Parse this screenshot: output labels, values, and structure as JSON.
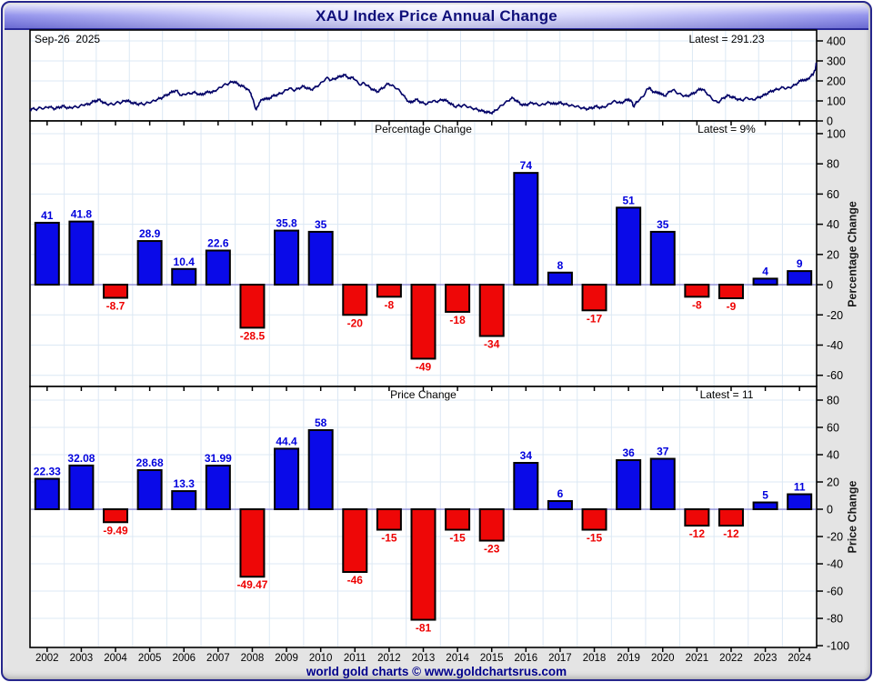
{
  "header": {
    "title": "XAU Index Price Annual Change"
  },
  "footer": {
    "text": "world gold charts © www.goldchartsrus.com"
  },
  "colors": {
    "frame_border": "#26268c",
    "header_text": "#10107a",
    "footer_text": "#00008b",
    "page_bg": "#e4e4e4",
    "panel_bg": "#ffffff",
    "panel_border": "#000000",
    "grid": "#dce8f4",
    "zero_line": "#8a8ad6",
    "line": "#000066",
    "bar_positive": "#0a0ae8",
    "bar_negative": "#ee0707",
    "label_positive": "#0000dd",
    "label_negative": "#ee0000",
    "tick_text": "#000000"
  },
  "chart_data": [
    {
      "type": "line",
      "name": "xau-index-price",
      "date_label": "Sep-26  2025",
      "latest_label": "Latest = 291.23",
      "latest_value": 291.23,
      "ylim": [
        0,
        454.5
      ],
      "yticks": [
        0,
        100,
        200,
        300,
        400
      ],
      "x_range": [
        2002.0,
        2025.75
      ],
      "grid": true,
      "points": [
        [
          2002.0,
          58
        ],
        [
          2002.08,
          61
        ],
        [
          2002.17,
          57
        ],
        [
          2002.25,
          63
        ],
        [
          2002.33,
          66
        ],
        [
          2002.42,
          62
        ],
        [
          2002.5,
          68
        ],
        [
          2002.58,
          71
        ],
        [
          2002.67,
          65
        ],
        [
          2002.75,
          61
        ],
        [
          2002.83,
          66
        ],
        [
          2002.92,
          70
        ],
        [
          2003.0,
          74
        ],
        [
          2003.08,
          69
        ],
        [
          2003.17,
          64
        ],
        [
          2003.25,
          67
        ],
        [
          2003.33,
          71
        ],
        [
          2003.42,
          68
        ],
        [
          2003.5,
          74
        ],
        [
          2003.58,
          79
        ],
        [
          2003.67,
          84
        ],
        [
          2003.75,
          81
        ],
        [
          2003.83,
          90
        ],
        [
          2003.92,
          97
        ],
        [
          2004.0,
          101
        ],
        [
          2004.08,
          106
        ],
        [
          2004.17,
          98
        ],
        [
          2004.25,
          89
        ],
        [
          2004.33,
          83
        ],
        [
          2004.42,
          86
        ],
        [
          2004.5,
          82
        ],
        [
          2004.58,
          88
        ],
        [
          2004.67,
          94
        ],
        [
          2004.75,
          91
        ],
        [
          2004.83,
          99
        ],
        [
          2004.92,
          103
        ],
        [
          2005.0,
          96
        ],
        [
          2005.08,
          91
        ],
        [
          2005.17,
          88
        ],
        [
          2005.25,
          84
        ],
        [
          2005.33,
          87
        ],
        [
          2005.42,
          83
        ],
        [
          2005.5,
          88
        ],
        [
          2005.58,
          92
        ],
        [
          2005.67,
          96
        ],
        [
          2005.75,
          101
        ],
        [
          2005.83,
          107
        ],
        [
          2005.92,
          112
        ],
        [
          2006.0,
          118
        ],
        [
          2006.08,
          126
        ],
        [
          2006.17,
          133
        ],
        [
          2006.25,
          141
        ],
        [
          2006.33,
          149
        ],
        [
          2006.42,
          152
        ],
        [
          2006.5,
          137
        ],
        [
          2006.58,
          127
        ],
        [
          2006.67,
          133
        ],
        [
          2006.75,
          138
        ],
        [
          2006.83,
          135
        ],
        [
          2006.92,
          143
        ],
        [
          2007.0,
          140
        ],
        [
          2007.08,
          135
        ],
        [
          2007.17,
          130
        ],
        [
          2007.25,
          137
        ],
        [
          2007.33,
          142
        ],
        [
          2007.42,
          147
        ],
        [
          2007.5,
          142
        ],
        [
          2007.58,
          151
        ],
        [
          2007.67,
          159
        ],
        [
          2007.75,
          168
        ],
        [
          2007.83,
          177
        ],
        [
          2007.92,
          183
        ],
        [
          2008.0,
          187
        ],
        [
          2008.08,
          194
        ],
        [
          2008.17,
          197
        ],
        [
          2008.25,
          187
        ],
        [
          2008.33,
          179
        ],
        [
          2008.42,
          173
        ],
        [
          2008.5,
          167
        ],
        [
          2008.58,
          156
        ],
        [
          2008.67,
          138
        ],
        [
          2008.72,
          112
        ],
        [
          2008.78,
          78
        ],
        [
          2008.83,
          57
        ],
        [
          2008.88,
          72
        ],
        [
          2008.92,
          90
        ],
        [
          2009.0,
          105
        ],
        [
          2009.08,
          113
        ],
        [
          2009.17,
          108
        ],
        [
          2009.25,
          116
        ],
        [
          2009.33,
          124
        ],
        [
          2009.42,
          129
        ],
        [
          2009.5,
          133
        ],
        [
          2009.58,
          139
        ],
        [
          2009.67,
          147
        ],
        [
          2009.75,
          156
        ],
        [
          2009.83,
          164
        ],
        [
          2009.92,
          157
        ],
        [
          2010.0,
          153
        ],
        [
          2010.08,
          161
        ],
        [
          2010.17,
          167
        ],
        [
          2010.25,
          173
        ],
        [
          2010.33,
          167
        ],
        [
          2010.42,
          161
        ],
        [
          2010.5,
          157
        ],
        [
          2010.58,
          164
        ],
        [
          2010.67,
          174
        ],
        [
          2010.75,
          183
        ],
        [
          2010.83,
          196
        ],
        [
          2010.92,
          210
        ],
        [
          2011.0,
          215
        ],
        [
          2011.08,
          203
        ],
        [
          2011.17,
          209
        ],
        [
          2011.25,
          215
        ],
        [
          2011.33,
          220
        ],
        [
          2011.42,
          226
        ],
        [
          2011.5,
          229
        ],
        [
          2011.58,
          221
        ],
        [
          2011.67,
          211
        ],
        [
          2011.75,
          219
        ],
        [
          2011.83,
          203
        ],
        [
          2011.92,
          187
        ],
        [
          2012.0,
          181
        ],
        [
          2012.08,
          191
        ],
        [
          2012.17,
          179
        ],
        [
          2012.25,
          168
        ],
        [
          2012.33,
          159
        ],
        [
          2012.42,
          151
        ],
        [
          2012.5,
          147
        ],
        [
          2012.58,
          157
        ],
        [
          2012.67,
          167
        ],
        [
          2012.75,
          179
        ],
        [
          2012.83,
          187
        ],
        [
          2012.92,
          177
        ],
        [
          2013.0,
          171
        ],
        [
          2013.08,
          161
        ],
        [
          2013.17,
          149
        ],
        [
          2013.25,
          133
        ],
        [
          2013.33,
          115
        ],
        [
          2013.42,
          99
        ],
        [
          2013.5,
          91
        ],
        [
          2013.58,
          101
        ],
        [
          2013.67,
          107
        ],
        [
          2013.75,
          99
        ],
        [
          2013.83,
          91
        ],
        [
          2013.92,
          87
        ],
        [
          2014.0,
          86
        ],
        [
          2014.08,
          95
        ],
        [
          2014.17,
          101
        ],
        [
          2014.25,
          96
        ],
        [
          2014.33,
          100
        ],
        [
          2014.42,
          104
        ],
        [
          2014.5,
          107
        ],
        [
          2014.58,
          99
        ],
        [
          2014.67,
          91
        ],
        [
          2014.75,
          81
        ],
        [
          2014.83,
          71
        ],
        [
          2014.92,
          77
        ],
        [
          2015.0,
          73
        ],
        [
          2015.08,
          79
        ],
        [
          2015.17,
          74
        ],
        [
          2015.25,
          69
        ],
        [
          2015.33,
          65
        ],
        [
          2015.42,
          61
        ],
        [
          2015.5,
          57
        ],
        [
          2015.58,
          53
        ],
        [
          2015.67,
          49
        ],
        [
          2015.75,
          46
        ],
        [
          2015.83,
          43
        ],
        [
          2015.92,
          41
        ],
        [
          2016.0,
          45
        ],
        [
          2016.08,
          56
        ],
        [
          2016.17,
          68
        ],
        [
          2016.25,
          79
        ],
        [
          2016.33,
          89
        ],
        [
          2016.42,
          99
        ],
        [
          2016.5,
          109
        ],
        [
          2016.58,
          114
        ],
        [
          2016.67,
          103
        ],
        [
          2016.75,
          93
        ],
        [
          2016.83,
          83
        ],
        [
          2016.92,
          79
        ],
        [
          2017.0,
          82
        ],
        [
          2017.08,
          87
        ],
        [
          2017.17,
          91
        ],
        [
          2017.25,
          86
        ],
        [
          2017.33,
          82
        ],
        [
          2017.42,
          79
        ],
        [
          2017.5,
          83
        ],
        [
          2017.58,
          88
        ],
        [
          2017.67,
          92
        ],
        [
          2017.75,
          89
        ],
        [
          2017.83,
          84
        ],
        [
          2017.92,
          89
        ],
        [
          2018.0,
          91
        ],
        [
          2018.08,
          87
        ],
        [
          2018.17,
          83
        ],
        [
          2018.25,
          80
        ],
        [
          2018.33,
          77
        ],
        [
          2018.42,
          75
        ],
        [
          2018.5,
          73
        ],
        [
          2018.58,
          69
        ],
        [
          2018.67,
          65
        ],
        [
          2018.75,
          62
        ],
        [
          2018.83,
          60
        ],
        [
          2018.92,
          64
        ],
        [
          2019.0,
          67
        ],
        [
          2019.08,
          73
        ],
        [
          2019.17,
          69
        ],
        [
          2019.25,
          66
        ],
        [
          2019.33,
          71
        ],
        [
          2019.42,
          75
        ],
        [
          2019.5,
          86
        ],
        [
          2019.58,
          93
        ],
        [
          2019.67,
          99
        ],
        [
          2019.75,
          93
        ],
        [
          2019.83,
          89
        ],
        [
          2019.92,
          97
        ],
        [
          2020.0,
          103
        ],
        [
          2020.08,
          109
        ],
        [
          2020.17,
          95
        ],
        [
          2020.22,
          72
        ],
        [
          2020.28,
          85
        ],
        [
          2020.33,
          97
        ],
        [
          2020.42,
          109
        ],
        [
          2020.5,
          121
        ],
        [
          2020.58,
          141
        ],
        [
          2020.64,
          161
        ],
        [
          2020.7,
          167
        ],
        [
          2020.75,
          154
        ],
        [
          2020.83,
          146
        ],
        [
          2020.92,
          140
        ],
        [
          2021.0,
          143
        ],
        [
          2021.08,
          131
        ],
        [
          2021.17,
          126
        ],
        [
          2021.25,
          137
        ],
        [
          2021.33,
          149
        ],
        [
          2021.42,
          156
        ],
        [
          2021.5,
          145
        ],
        [
          2021.58,
          137
        ],
        [
          2021.67,
          131
        ],
        [
          2021.75,
          126
        ],
        [
          2021.83,
          123
        ],
        [
          2021.92,
          131
        ],
        [
          2022.0,
          135
        ],
        [
          2022.08,
          143
        ],
        [
          2022.17,
          153
        ],
        [
          2022.25,
          161
        ],
        [
          2022.33,
          155
        ],
        [
          2022.42,
          141
        ],
        [
          2022.5,
          127
        ],
        [
          2022.58,
          113
        ],
        [
          2022.67,
          101
        ],
        [
          2022.75,
          93
        ],
        [
          2022.83,
          99
        ],
        [
          2022.92,
          113
        ],
        [
          2023.0,
          121
        ],
        [
          2023.08,
          127
        ],
        [
          2023.17,
          121
        ],
        [
          2023.25,
          117
        ],
        [
          2023.33,
          111
        ],
        [
          2023.42,
          107
        ],
        [
          2023.5,
          103
        ],
        [
          2023.58,
          111
        ],
        [
          2023.67,
          115
        ],
        [
          2023.75,
          109
        ],
        [
          2023.83,
          105
        ],
        [
          2023.92,
          113
        ],
        [
          2024.0,
          117
        ],
        [
          2024.08,
          123
        ],
        [
          2024.17,
          129
        ],
        [
          2024.25,
          137
        ],
        [
          2024.33,
          145
        ],
        [
          2024.42,
          151
        ],
        [
          2024.5,
          155
        ],
        [
          2024.58,
          159
        ],
        [
          2024.67,
          164
        ],
        [
          2024.75,
          168
        ],
        [
          2024.83,
          161
        ],
        [
          2024.92,
          167
        ],
        [
          2025.0,
          171
        ],
        [
          2025.08,
          179
        ],
        [
          2025.17,
          189
        ],
        [
          2025.25,
          199
        ],
        [
          2025.33,
          207
        ],
        [
          2025.42,
          201
        ],
        [
          2025.5,
          213
        ],
        [
          2025.58,
          223
        ],
        [
          2025.63,
          233
        ],
        [
          2025.67,
          243
        ],
        [
          2025.7,
          253
        ],
        [
          2025.72,
          266
        ],
        [
          2025.74,
          291.23
        ]
      ]
    },
    {
      "type": "bar",
      "name": "percentage-change",
      "title": "Percentage Change",
      "latest_label": "Latest = 9%",
      "latest_value": 9,
      "ylabel": "Percentage Change",
      "ylim": [
        -67.4,
        108.4
      ],
      "yticks": [
        -60,
        -40,
        -20,
        0,
        20,
        40,
        60,
        80,
        100
      ],
      "grid": true,
      "categories": [
        2002,
        2003,
        2004,
        2005,
        2006,
        2007,
        2008,
        2009,
        2010,
        2011,
        2012,
        2013,
        2014,
        2015,
        2016,
        2017,
        2018,
        2019,
        2020,
        2021,
        2022,
        2023,
        2024
      ],
      "values": [
        41,
        41.8,
        -8.7,
        28.9,
        10.4,
        22.6,
        -28.5,
        35.8,
        35,
        -20,
        -8,
        -49,
        -18,
        -34,
        74,
        8,
        -17,
        51,
        35,
        -8,
        -9,
        4,
        9
      ]
    },
    {
      "type": "bar",
      "name": "price-change",
      "title": "Price Change",
      "latest_label": "Latest = 11",
      "latest_value": 11,
      "ylabel": "Price Change",
      "ylim": [
        -101.3,
        90
      ],
      "yticks": [
        -100,
        -80,
        -60,
        -40,
        -20,
        0,
        20,
        40,
        60,
        80
      ],
      "grid": true,
      "categories": [
        2002,
        2003,
        2004,
        2005,
        2006,
        2007,
        2008,
        2009,
        2010,
        2011,
        2012,
        2013,
        2014,
        2015,
        2016,
        2017,
        2018,
        2019,
        2020,
        2021,
        2022,
        2023,
        2024
      ],
      "values": [
        22.33,
        32.08,
        -9.49,
        28.68,
        13.3,
        31.99,
        -49.47,
        44.4,
        58,
        -46,
        -15,
        -81,
        -15,
        -23,
        34,
        6,
        -15,
        36,
        37,
        -12,
        -12,
        5,
        11
      ]
    }
  ]
}
